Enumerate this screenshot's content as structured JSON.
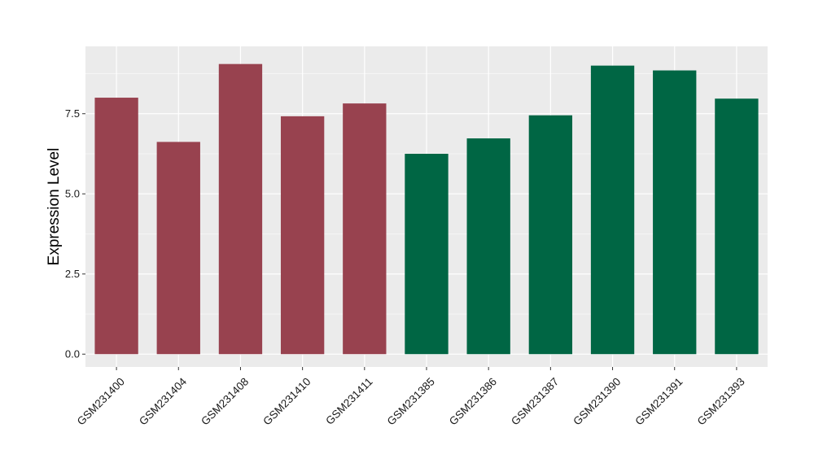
{
  "chart_data": {
    "type": "bar",
    "ylabel": "Expression Level",
    "xlabel": "",
    "ylim": [
      -0.4,
      9.6
    ],
    "yticks": [
      0.0,
      2.5,
      5.0,
      7.5
    ],
    "ytick_labels": [
      "0.0",
      "2.5",
      "5.0",
      "7.5"
    ],
    "grid": true,
    "legend": "none",
    "categories": [
      "GSM231400",
      "GSM231404",
      "GSM231408",
      "GSM231410",
      "GSM231411",
      "GSM231385",
      "GSM231386",
      "GSM231387",
      "GSM231390",
      "GSM231391",
      "GSM231393"
    ],
    "values": [
      8.0,
      6.62,
      9.05,
      7.42,
      7.82,
      6.25,
      6.73,
      7.45,
      9.0,
      8.85,
      7.97
    ],
    "group_colors": [
      "#98424F",
      "#98424F",
      "#98424F",
      "#98424F",
      "#98424F",
      "#006644",
      "#006644",
      "#006644",
      "#006644",
      "#006644",
      "#006644"
    ],
    "colors": {
      "panel_bg": "#EBEBEB",
      "grid_major": "#FFFFFF",
      "tick_text": "#1A1A1A"
    }
  }
}
